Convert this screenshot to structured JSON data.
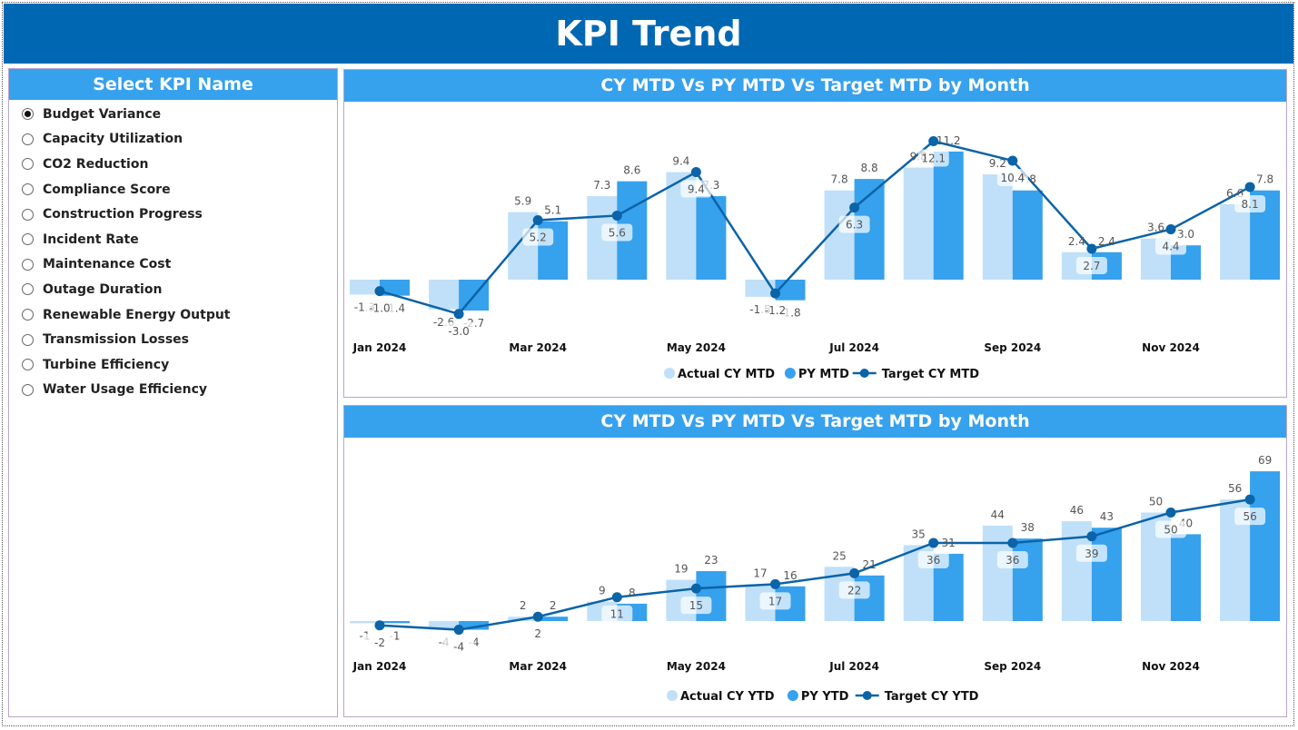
{
  "title": "KPI Trend",
  "slicer": {
    "title": "Select KPI Name",
    "selected": "Budget Variance",
    "items": [
      "Budget Variance",
      "Capacity Utilization",
      "CO2 Reduction",
      "Compliance Score",
      "Construction Progress",
      "Incident Rate",
      "Maintenance Cost",
      "Outage Duration",
      "Renewable Energy Output",
      "Transmission Losses",
      "Turbine Efficiency",
      "Water Usage Efficiency"
    ]
  },
  "colors": {
    "header": "#0068b3",
    "panel_header": "#36a1ed",
    "actual": "#bfe0f8",
    "py": "#36a1ed",
    "target": "#0b63a8"
  },
  "chart_data": [
    {
      "type": "bar+line",
      "title": "CY MTD Vs PY MTD Vs Target MTD by Month",
      "categories": [
        "Jan 2024",
        "Feb 2024",
        "Mar 2024",
        "Apr 2024",
        "May 2024",
        "Jun 2024",
        "Jul 2024",
        "Aug 2024",
        "Sep 2024",
        "Oct 2024",
        "Nov 2024",
        "Dec 2024"
      ],
      "tick_labels": [
        "Jan 2024",
        "Mar 2024",
        "May 2024",
        "Jul 2024",
        "Sep 2024",
        "Nov 2024"
      ],
      "legend_position": "bottom",
      "series": [
        {
          "name": "Actual CY MTD",
          "type": "bar",
          "values": [
            -1.3,
            -2.6,
            5.9,
            7.3,
            9.4,
            -1.5,
            7.8,
            9.8,
            9.2,
            2.4,
            3.6,
            6.6
          ]
        },
        {
          "name": "PY MTD",
          "type": "bar",
          "values": [
            -1.4,
            -2.7,
            5.1,
            8.6,
            7.3,
            -1.8,
            8.8,
            11.2,
            7.8,
            2.4,
            3.0,
            7.8
          ]
        },
        {
          "name": "Target CY MTD",
          "type": "line",
          "values": [
            -1.0,
            -3.0,
            5.2,
            5.6,
            9.4,
            -1.2,
            6.3,
            12.1,
            10.4,
            2.7,
            4.4,
            8.1
          ]
        }
      ],
      "decimals": 1
    },
    {
      "type": "bar+line",
      "title": "CY MTD Vs PY MTD Vs Target MTD by Month",
      "categories": [
        "Jan 2024",
        "Feb 2024",
        "Mar 2024",
        "Apr 2024",
        "May 2024",
        "Jun 2024",
        "Jul 2024",
        "Aug 2024",
        "Sep 2024",
        "Oct 2024",
        "Nov 2024",
        "Dec 2024"
      ],
      "tick_labels": [
        "Jan 2024",
        "Mar 2024",
        "May 2024",
        "Jul 2024",
        "Sep 2024",
        "Nov 2024"
      ],
      "legend_position": "bottom",
      "series": [
        {
          "name": "Actual CY YTD",
          "type": "bar",
          "values": [
            -1,
            -4,
            2,
            9,
            19,
            17,
            25,
            35,
            44,
            46,
            50,
            56
          ]
        },
        {
          "name": "PY YTD",
          "type": "bar",
          "values": [
            -1,
            -4,
            2,
            8,
            23,
            16,
            21,
            31,
            38,
            43,
            40,
            69
          ]
        },
        {
          "name": "Target CY YTD",
          "type": "line",
          "values": [
            -2,
            -4,
            2,
            11,
            15,
            17,
            22,
            36,
            36,
            39,
            50,
            56
          ]
        }
      ],
      "decimals": 0
    }
  ]
}
